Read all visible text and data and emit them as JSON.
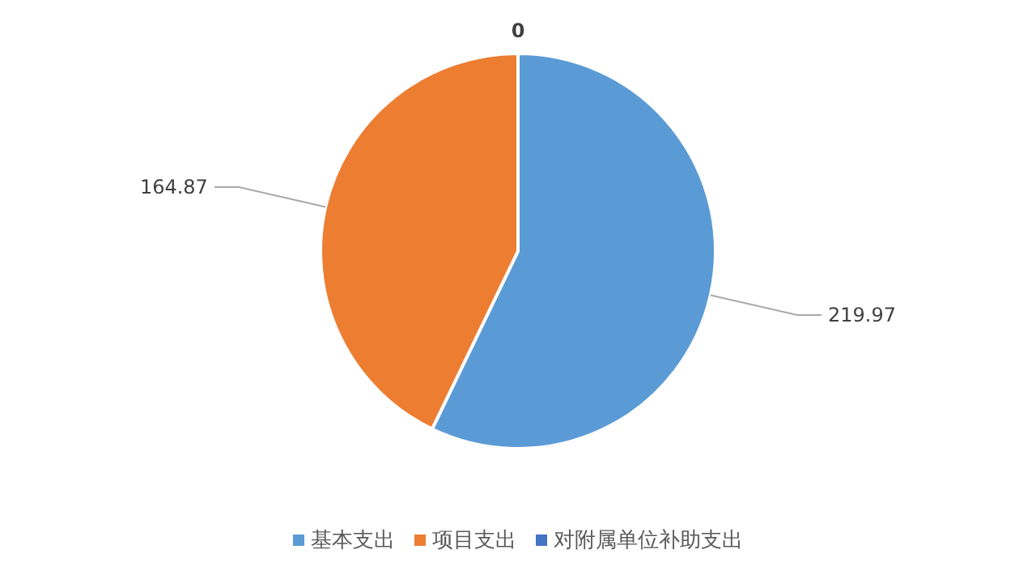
{
  "chart_data": {
    "type": "pie",
    "categories": [
      "基本支出",
      "项目支出",
      "对附属单位补助支出"
    ],
    "values": [
      219.97,
      164.87,
      0
    ],
    "colors": [
      "#5b9bd5",
      "#ed7d31",
      "#4472c4"
    ],
    "value_labels": [
      "219.97",
      "164.87",
      "0"
    ],
    "legend": "bottom"
  }
}
